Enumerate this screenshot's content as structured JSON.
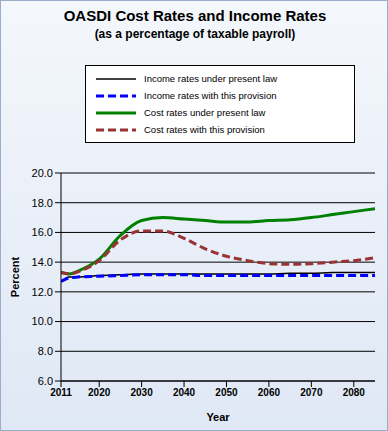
{
  "chart_data": {
    "type": "line",
    "title": "OASDI Cost Rates and Income Rates",
    "subtitle": "(as a percentage of taxable payroll)",
    "x_label": "Year",
    "y_label": "Percent",
    "x": [
      2011,
      2013,
      2015,
      2020,
      2025,
      2030,
      2035,
      2040,
      2045,
      2050,
      2055,
      2060,
      2065,
      2070,
      2075,
      2080,
      2085
    ],
    "series": [
      {
        "name": "Income rates under present law",
        "color": "#000000",
        "line_style": "solid",
        "values": [
          12.7,
          13.0,
          13.0,
          13.1,
          13.15,
          13.2,
          13.2,
          13.2,
          13.2,
          13.2,
          13.2,
          13.2,
          13.25,
          13.25,
          13.3,
          13.3,
          13.3
        ]
      },
      {
        "name": "Income rates with this provision",
        "color": "#0000ff",
        "line_style": "dashed",
        "values": [
          12.7,
          12.95,
          13.0,
          13.05,
          13.1,
          13.15,
          13.15,
          13.15,
          13.1,
          13.1,
          13.1,
          13.1,
          13.1,
          13.1,
          13.1,
          13.1,
          13.1
        ]
      },
      {
        "name": "Cost rates under present law",
        "color": "#008000",
        "line_style": "solid",
        "values": [
          13.3,
          13.2,
          13.4,
          14.2,
          15.8,
          16.8,
          17.0,
          16.9,
          16.8,
          16.7,
          16.7,
          16.8,
          16.85,
          17.0,
          17.2,
          17.4,
          17.6
        ]
      },
      {
        "name": "Cost rates with this provision",
        "color": "#993333",
        "line_style": "dashed",
        "values": [
          13.3,
          13.2,
          13.35,
          14.1,
          15.5,
          16.1,
          16.1,
          15.6,
          14.9,
          14.4,
          14.1,
          13.9,
          13.85,
          13.9,
          14.0,
          14.1,
          14.3
        ]
      }
    ],
    "xlim": [
      2011,
      2085
    ],
    "xticks": [
      2011,
      2020,
      2030,
      2040,
      2050,
      2060,
      2070,
      2080
    ],
    "ylim": [
      6,
      20
    ],
    "yticks": [
      {
        "value": 6,
        "label": "6.0"
      },
      {
        "value": 8,
        "label": "8.0"
      },
      {
        "value": 10,
        "label": "10.0"
      },
      {
        "value": 12,
        "label": "12.0"
      },
      {
        "value": 14,
        "label": "14.0"
      },
      {
        "value": 16,
        "label": "16.0"
      },
      {
        "value": 18,
        "label": "18.0"
      },
      {
        "value": 20,
        "label": "20.0"
      }
    ],
    "grid": true,
    "legend": "top"
  }
}
